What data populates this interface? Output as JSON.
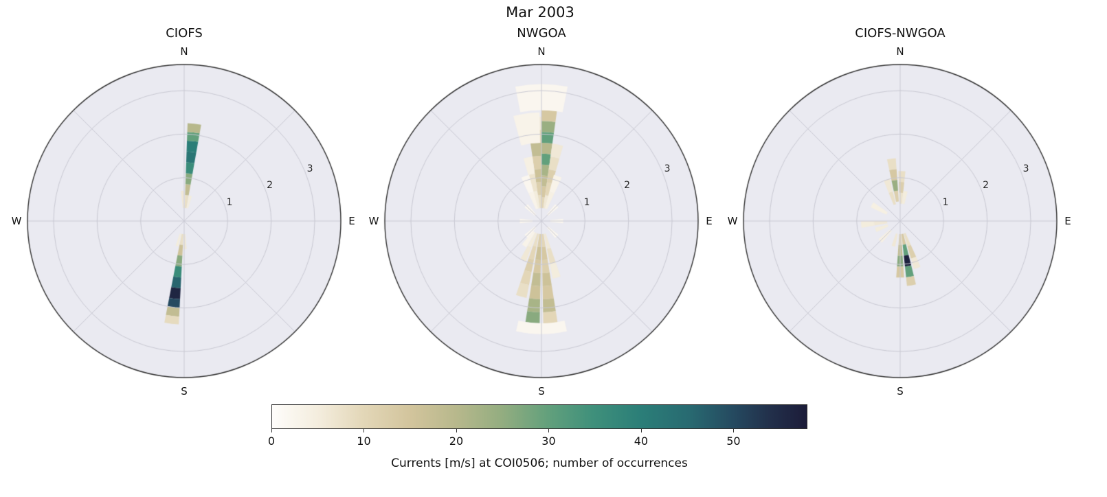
{
  "title": "Mar 2003",
  "polar": {
    "rmax": 3.6,
    "rings": [
      1,
      2,
      3
    ],
    "ring_labels": [
      "1",
      "2",
      "3"
    ],
    "compass": {
      "n": "N",
      "e": "E",
      "s": "S",
      "w": "W"
    },
    "bg_color": "#eaeaf1",
    "grid_color": "#c9c9d3",
    "edge_color": "#2f2f2f"
  },
  "colorbar": {
    "label": "Currents [m/s] at COI0506; number of occurrences",
    "ticks": [
      "0",
      "10",
      "20",
      "30",
      "40",
      "50"
    ],
    "tick_values": [
      0,
      10,
      20,
      30,
      40,
      50
    ],
    "vmin": 0,
    "vmax": 58,
    "stops": [
      {
        "t": 0.0,
        "c": "#fefdfb"
      },
      {
        "t": 0.09,
        "c": "#f3ecdc"
      },
      {
        "t": 0.17,
        "c": "#e3d7b8"
      },
      {
        "t": 0.26,
        "c": "#d2c49c"
      },
      {
        "t": 0.345,
        "c": "#b7b88c"
      },
      {
        "t": 0.43,
        "c": "#93ad80"
      },
      {
        "t": 0.517,
        "c": "#62a07c"
      },
      {
        "t": 0.6,
        "c": "#3f907b"
      },
      {
        "t": 0.69,
        "c": "#2b7e78"
      },
      {
        "t": 0.78,
        "c": "#286a71"
      },
      {
        "t": 0.862,
        "c": "#254a60"
      },
      {
        "t": 0.93,
        "c": "#22304b"
      },
      {
        "t": 1.0,
        "c": "#1c1c39"
      }
    ]
  },
  "chart_data": [
    {
      "type": "polar_histogram",
      "title": "CIOFS",
      "direction_convention": "degrees clockwise from North",
      "radial_unit": "m/s",
      "radial_range": [
        0,
        3.6
      ],
      "cell_format": [
        "dir_deg",
        "width_deg",
        "r_inner",
        "r_outer",
        "count"
      ],
      "cells": [
        [
          6,
          8,
          0.3,
          0.6,
          8
        ],
        [
          6,
          8,
          0.6,
          0.85,
          18
        ],
        [
          6,
          8,
          0.85,
          1.1,
          26
        ],
        [
          6,
          8,
          1.1,
          1.35,
          36
        ],
        [
          6,
          8,
          1.35,
          1.6,
          42
        ],
        [
          6,
          8,
          1.6,
          1.85,
          40
        ],
        [
          6,
          8,
          1.85,
          2.05,
          30
        ],
        [
          6,
          8,
          2.05,
          2.25,
          20
        ],
        [
          357,
          6,
          0.3,
          0.7,
          6
        ],
        [
          14,
          6,
          0.3,
          0.6,
          5
        ],
        [
          187,
          8,
          0.3,
          0.55,
          8
        ],
        [
          187,
          8,
          0.55,
          0.8,
          16
        ],
        [
          187,
          8,
          0.8,
          1.05,
          26
        ],
        [
          187,
          8,
          1.05,
          1.3,
          36
        ],
        [
          187,
          8,
          1.3,
          1.55,
          46
        ],
        [
          187,
          8,
          1.55,
          1.8,
          56
        ],
        [
          187,
          8,
          1.8,
          2.0,
          50
        ],
        [
          187,
          8,
          2.0,
          2.2,
          18
        ],
        [
          187,
          8,
          2.2,
          2.38,
          9
        ],
        [
          178,
          6,
          0.3,
          0.65,
          6
        ],
        [
          196,
          6,
          0.3,
          0.6,
          5
        ]
      ]
    },
    {
      "type": "polar_histogram",
      "title": "NWGOA",
      "direction_convention": "degrees clockwise from North",
      "radial_unit": "m/s",
      "radial_range": [
        0,
        3.6
      ],
      "cell_format": [
        "dir_deg",
        "width_deg",
        "r_inner",
        "r_outer",
        "count"
      ],
      "cells": [
        [
          4,
          8,
          0.3,
          0.55,
          10
        ],
        [
          4,
          8,
          0.55,
          0.8,
          14
        ],
        [
          4,
          8,
          0.8,
          1.05,
          18
        ],
        [
          4,
          8,
          1.05,
          1.3,
          22
        ],
        [
          4,
          8,
          1.3,
          1.55,
          30
        ],
        [
          4,
          8,
          1.55,
          1.8,
          20
        ],
        [
          4,
          8,
          1.8,
          2.05,
          30
        ],
        [
          4,
          8,
          2.05,
          2.3,
          24
        ],
        [
          4,
          8,
          2.3,
          2.55,
          14
        ],
        [
          4,
          8,
          2.55,
          2.8,
          8
        ],
        [
          356,
          8,
          0.3,
          0.6,
          8
        ],
        [
          356,
          8,
          0.6,
          0.9,
          12
        ],
        [
          356,
          8,
          0.9,
          1.2,
          16
        ],
        [
          356,
          8,
          1.2,
          1.5,
          12
        ],
        [
          356,
          8,
          1.5,
          1.8,
          18
        ],
        [
          356,
          8,
          1.8,
          2.1,
          10
        ],
        [
          356,
          8,
          2.1,
          2.4,
          6
        ],
        [
          12,
          8,
          0.3,
          0.6,
          6
        ],
        [
          12,
          8,
          0.6,
          0.9,
          10
        ],
        [
          12,
          8,
          0.9,
          1.2,
          12
        ],
        [
          12,
          8,
          1.2,
          1.5,
          8
        ],
        [
          12,
          8,
          1.5,
          1.8,
          6
        ],
        [
          348,
          8,
          0.3,
          0.7,
          5
        ],
        [
          348,
          8,
          0.7,
          1.1,
          7
        ],
        [
          348,
          8,
          1.1,
          1.5,
          4
        ],
        [
          20,
          10,
          0.3,
          0.7,
          4
        ],
        [
          20,
          10,
          0.7,
          1.1,
          3
        ],
        [
          340,
          10,
          0.3,
          0.7,
          3
        ],
        [
          340,
          10,
          0.7,
          1.1,
          2
        ],
        [
          0,
          22,
          2.55,
          3.15,
          2
        ],
        [
          352,
          14,
          1.8,
          2.5,
          3
        ],
        [
          175,
          8,
          0.3,
          0.6,
          10
        ],
        [
          175,
          8,
          0.6,
          0.9,
          14
        ],
        [
          175,
          8,
          0.9,
          1.2,
          12
        ],
        [
          175,
          8,
          1.2,
          1.5,
          16
        ],
        [
          175,
          8,
          1.5,
          1.8,
          14
        ],
        [
          175,
          8,
          1.8,
          2.1,
          18
        ],
        [
          175,
          8,
          2.1,
          2.4,
          10
        ],
        [
          185,
          8,
          0.3,
          0.6,
          12
        ],
        [
          185,
          8,
          0.6,
          0.9,
          16
        ],
        [
          185,
          8,
          0.9,
          1.2,
          14
        ],
        [
          185,
          8,
          1.2,
          1.5,
          18
        ],
        [
          185,
          8,
          1.5,
          1.8,
          16
        ],
        [
          185,
          8,
          1.8,
          2.1,
          22
        ],
        [
          185,
          8,
          2.1,
          2.35,
          26
        ],
        [
          195,
          8,
          0.3,
          0.6,
          8
        ],
        [
          195,
          8,
          0.6,
          0.9,
          10
        ],
        [
          195,
          8,
          0.9,
          1.2,
          12
        ],
        [
          195,
          8,
          1.2,
          1.5,
          10
        ],
        [
          195,
          8,
          1.5,
          1.8,
          8
        ],
        [
          165,
          8,
          0.3,
          0.65,
          6
        ],
        [
          165,
          8,
          0.65,
          1.0,
          8
        ],
        [
          165,
          8,
          1.0,
          1.35,
          5
        ],
        [
          205,
          8,
          0.3,
          0.65,
          5
        ],
        [
          205,
          8,
          0.65,
          1.0,
          6
        ],
        [
          215,
          10,
          0.3,
          0.7,
          3
        ],
        [
          180,
          26,
          2.35,
          2.6,
          2
        ],
        [
          90,
          12,
          0.2,
          0.5,
          2
        ],
        [
          270,
          12,
          0.2,
          0.5,
          2
        ],
        [
          45,
          12,
          0.2,
          0.5,
          2
        ],
        [
          315,
          12,
          0.2,
          0.5,
          2
        ],
        [
          135,
          12,
          0.2,
          0.5,
          2
        ],
        [
          225,
          12,
          0.2,
          0.5,
          2
        ]
      ]
    },
    {
      "type": "polar_histogram",
      "title": "CIOFS-NWGOA",
      "direction_convention": "degrees clockwise from North",
      "radial_unit": "m/s",
      "radial_range": [
        0,
        3.6
      ],
      "cell_format": [
        "dir_deg",
        "width_deg",
        "r_inner",
        "r_outer",
        "count"
      ],
      "cells": [
        [
          170,
          8,
          0.3,
          0.55,
          14
        ],
        [
          170,
          8,
          0.55,
          0.8,
          30
        ],
        [
          170,
          8,
          0.8,
          1.05,
          57
        ],
        [
          170,
          8,
          1.05,
          1.3,
          30
        ],
        [
          170,
          8,
          1.3,
          1.5,
          12
        ],
        [
          180,
          8,
          0.3,
          0.55,
          12
        ],
        [
          180,
          8,
          0.55,
          0.8,
          18
        ],
        [
          180,
          8,
          0.8,
          1.05,
          26
        ],
        [
          180,
          8,
          1.05,
          1.3,
          14
        ],
        [
          160,
          8,
          0.3,
          0.6,
          8
        ],
        [
          160,
          8,
          0.6,
          0.9,
          12
        ],
        [
          160,
          8,
          0.9,
          1.15,
          6
        ],
        [
          352,
          8,
          0.45,
          0.7,
          12
        ],
        [
          352,
          8,
          0.7,
          0.95,
          24
        ],
        [
          352,
          8,
          0.95,
          1.2,
          14
        ],
        [
          352,
          8,
          1.2,
          1.45,
          8
        ],
        [
          2,
          8,
          0.4,
          0.65,
          7
        ],
        [
          2,
          8,
          0.65,
          0.9,
          12
        ],
        [
          2,
          8,
          0.9,
          1.15,
          8
        ],
        [
          342,
          8,
          0.4,
          0.7,
          8
        ],
        [
          342,
          8,
          0.7,
          1.0,
          6
        ],
        [
          10,
          8,
          0.4,
          0.7,
          5
        ],
        [
          265,
          10,
          0.3,
          0.6,
          6
        ],
        [
          265,
          10,
          0.6,
          0.9,
          5
        ],
        [
          250,
          10,
          0.3,
          0.6,
          5
        ],
        [
          225,
          10,
          0.3,
          0.65,
          4
        ],
        [
          300,
          10,
          0.35,
          0.75,
          4
        ],
        [
          195,
          8,
          0.3,
          0.6,
          6
        ]
      ]
    }
  ]
}
